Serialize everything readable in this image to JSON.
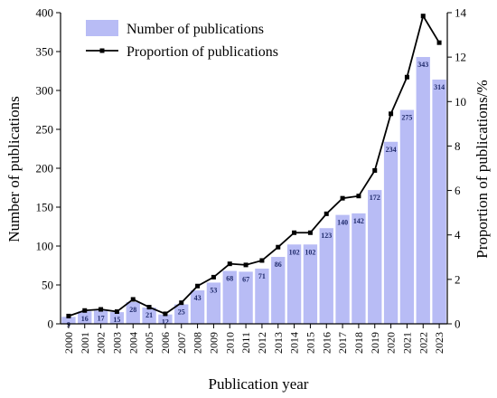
{
  "chart_data": {
    "type": "bar",
    "title": "",
    "xlabel": "Publication year",
    "ylabel": "Number of publications",
    "y2label": "Proportion of publications/%",
    "ylim": [
      0,
      400
    ],
    "y2lim": [
      0,
      14
    ],
    "yticks": [
      "0",
      "50",
      "100",
      "150",
      "200",
      "250",
      "300",
      "350",
      "400"
    ],
    "y2ticks": [
      "0",
      "2",
      "4",
      "6",
      "8",
      "10",
      "12",
      "14"
    ],
    "legend_position": "top-left",
    "colors": {
      "bar": "#b8bcf5",
      "line": "#000000",
      "bar_label": "#1f2a6b"
    },
    "categories": [
      "2000",
      "2001",
      "2002",
      "2003",
      "2004",
      "2005",
      "2006",
      "2007",
      "2008",
      "2009",
      "2010",
      "2011",
      "2012",
      "2013",
      "2014",
      "2015",
      "2016",
      "2017",
      "2018",
      "2019",
      "2020",
      "2021",
      "2022",
      "2023"
    ],
    "series": [
      {
        "name": "Number of publications",
        "type": "bar",
        "axis": "left",
        "values": [
          9,
          16,
          17,
          15,
          28,
          21,
          12,
          25,
          43,
          53,
          68,
          67,
          71,
          86,
          102,
          102,
          123,
          140,
          142,
          172,
          234,
          275,
          343,
          314
        ],
        "labels": [
          "9",
          "16",
          "17",
          "15",
          "28",
          "21",
          "12",
          "25",
          "43",
          "53",
          "68",
          "67",
          "71",
          "86",
          "102",
          "102",
          "123",
          "140",
          "142",
          "172",
          "234",
          "275",
          "343",
          "314"
        ]
      },
      {
        "name": "Proportion of publications",
        "type": "line",
        "axis": "right",
        "values": [
          0.35,
          0.6,
          0.65,
          0.55,
          1.1,
          0.75,
          0.45,
          0.95,
          1.7,
          2.1,
          2.7,
          2.65,
          2.85,
          3.45,
          4.1,
          4.1,
          4.95,
          5.65,
          5.75,
          6.9,
          9.45,
          11.1,
          13.85,
          12.65
        ]
      }
    ]
  }
}
